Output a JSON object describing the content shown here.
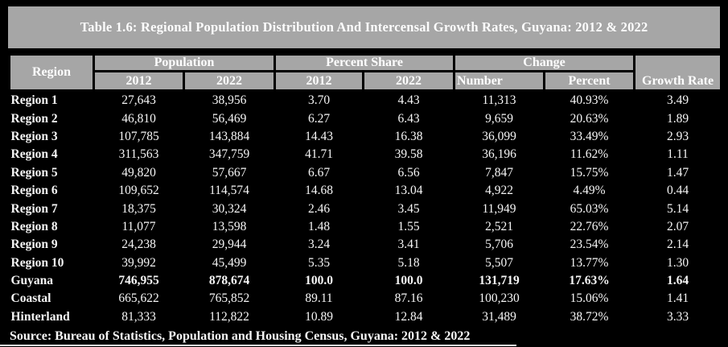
{
  "title": "Table 1.6: Regional Population Distribution And Intercensal Growth Rates, Guyana: 2012 & 2022",
  "source": "Source: Bureau of Statistics, Population and Housing Census, Guyana: 2012 & 2022",
  "colors": {
    "band_gray": "#a6a6a6",
    "page_black": "#000000",
    "text_white": "#fdfdfd"
  },
  "header": {
    "region": "Region",
    "growth_rate": "Growth Rate",
    "groups": [
      {
        "label": "Population",
        "cols": [
          "2012",
          "2022"
        ]
      },
      {
        "label": "Percent Share",
        "cols": [
          "2012",
          "2022"
        ]
      },
      {
        "label": "Change",
        "cols": [
          "Number",
          "Percent"
        ]
      }
    ]
  },
  "rows": [
    {
      "region": "Region 1",
      "pop_2012": "27,643",
      "pop_2022": "38,956",
      "share_2012": "3.70",
      "share_2022": "4.43",
      "change_number": "11,313",
      "change_percent": "40.93%",
      "growth_rate": "3.49",
      "emphasis": false
    },
    {
      "region": "Region 2",
      "pop_2012": "46,810",
      "pop_2022": "56,469",
      "share_2012": "6.27",
      "share_2022": "6.43",
      "change_number": "9,659",
      "change_percent": "20.63%",
      "growth_rate": "1.89",
      "emphasis": false
    },
    {
      "region": "Region 3",
      "pop_2012": "107,785",
      "pop_2022": "143,884",
      "share_2012": "14.43",
      "share_2022": "16.38",
      "change_number": "36,099",
      "change_percent": "33.49%",
      "growth_rate": "2.93",
      "emphasis": false
    },
    {
      "region": "Region 4",
      "pop_2012": "311,563",
      "pop_2022": "347,759",
      "share_2012": "41.71",
      "share_2022": "39.58",
      "change_number": "36,196",
      "change_percent": "11.62%",
      "growth_rate": "1.11",
      "emphasis": false
    },
    {
      "region": "Region 5",
      "pop_2012": "49,820",
      "pop_2022": "57,667",
      "share_2012": "6.67",
      "share_2022": "6.56",
      "change_number": "7,847",
      "change_percent": "15.75%",
      "growth_rate": "1.47",
      "emphasis": false
    },
    {
      "region": "Region 6",
      "pop_2012": "109,652",
      "pop_2022": "114,574",
      "share_2012": "14.68",
      "share_2022": "13.04",
      "change_number": "4,922",
      "change_percent": "4.49%",
      "growth_rate": "0.44",
      "emphasis": false
    },
    {
      "region": "Region 7",
      "pop_2012": "18,375",
      "pop_2022": "30,324",
      "share_2012": "2.46",
      "share_2022": "3.45",
      "change_number": "11,949",
      "change_percent": "65.03%",
      "growth_rate": "5.14",
      "emphasis": false
    },
    {
      "region": "Region 8",
      "pop_2012": "11,077",
      "pop_2022": "13,598",
      "share_2012": "1.48",
      "share_2022": "1.55",
      "change_number": "2,521",
      "change_percent": "22.76%",
      "growth_rate": "2.07",
      "emphasis": false
    },
    {
      "region": "Region 9",
      "pop_2012": "24,238",
      "pop_2022": "29,944",
      "share_2012": "3.24",
      "share_2022": "3.41",
      "change_number": "5,706",
      "change_percent": "23.54%",
      "growth_rate": "2.14",
      "emphasis": false
    },
    {
      "region": "Region 10",
      "pop_2012": "39,992",
      "pop_2022": "45,499",
      "share_2012": "5.35",
      "share_2022": "5.18",
      "change_number": "5,507",
      "change_percent": "13.77%",
      "growth_rate": "1.30",
      "emphasis": false
    },
    {
      "region": "Guyana",
      "pop_2012": "746,955",
      "pop_2022": "878,674",
      "share_2012": "100.0",
      "share_2022": "100.0",
      "change_number": "131,719",
      "change_percent": "17.63%",
      "growth_rate": "1.64",
      "emphasis": true
    },
    {
      "region": "Coastal",
      "pop_2012": "665,622",
      "pop_2022": "765,852",
      "share_2012": "89.11",
      "share_2022": "87.16",
      "change_number": "100,230",
      "change_percent": "15.06%",
      "growth_rate": "1.41",
      "emphasis": false
    },
    {
      "region": "Hinterland",
      "pop_2012": "81,333",
      "pop_2022": "112,822",
      "share_2012": "10.89",
      "share_2022": "12.84",
      "change_number": "31,489",
      "change_percent": "38.72%",
      "growth_rate": "3.33",
      "emphasis": false
    }
  ]
}
